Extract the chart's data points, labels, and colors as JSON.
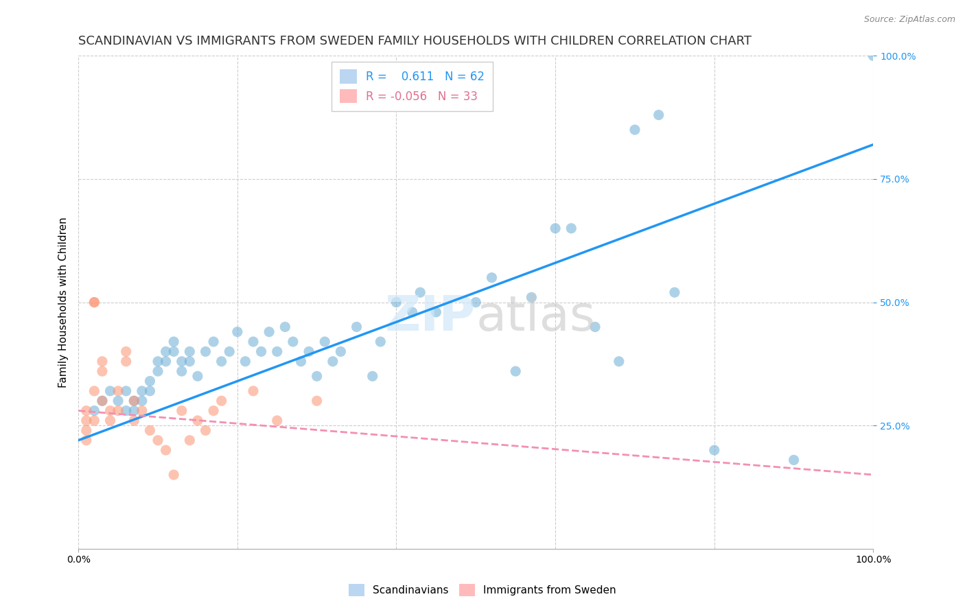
{
  "title": "SCANDINAVIAN VS IMMIGRANTS FROM SWEDEN FAMILY HOUSEHOLDS WITH CHILDREN CORRELATION CHART",
  "source": "Source: ZipAtlas.com",
  "xlabel": "",
  "ylabel": "Family Households with Children",
  "xlim": [
    0,
    1.0
  ],
  "ylim": [
    0,
    1.0
  ],
  "xtick_labels": [
    "0.0%",
    "100.0%"
  ],
  "ytick_labels_right": [
    "100.0%",
    "75.0%",
    "50.0%",
    "25.0%"
  ],
  "legend_blue_R": "R =",
  "legend_blue_R_val": "0.611",
  "legend_blue_N": "N = 62",
  "legend_pink_R": "R = -0.056",
  "legend_pink_N": "N = 33",
  "blue_color": "#6baed6",
  "pink_color": "#fc9272",
  "blue_line_color": "#2196F3",
  "pink_line_color": "#F48FB1",
  "watermark": "ZIPatlas",
  "blue_scatter_x": [
    0.02,
    0.03,
    0.04,
    0.05,
    0.06,
    0.06,
    0.07,
    0.07,
    0.08,
    0.08,
    0.09,
    0.09,
    0.1,
    0.1,
    0.11,
    0.11,
    0.12,
    0.12,
    0.13,
    0.13,
    0.14,
    0.14,
    0.15,
    0.16,
    0.17,
    0.18,
    0.19,
    0.2,
    0.21,
    0.22,
    0.23,
    0.24,
    0.25,
    0.26,
    0.27,
    0.28,
    0.29,
    0.3,
    0.31,
    0.32,
    0.33,
    0.35,
    0.37,
    0.38,
    0.4,
    0.42,
    0.43,
    0.45,
    0.5,
    0.52,
    0.55,
    0.57,
    0.6,
    0.62,
    0.65,
    0.68,
    0.7,
    0.73,
    0.75,
    0.8,
    0.9,
    1.0
  ],
  "blue_scatter_y": [
    0.28,
    0.3,
    0.32,
    0.3,
    0.28,
    0.32,
    0.3,
    0.28,
    0.3,
    0.32,
    0.34,
    0.32,
    0.36,
    0.38,
    0.4,
    0.38,
    0.42,
    0.4,
    0.36,
    0.38,
    0.4,
    0.38,
    0.35,
    0.4,
    0.42,
    0.38,
    0.4,
    0.44,
    0.38,
    0.42,
    0.4,
    0.44,
    0.4,
    0.45,
    0.42,
    0.38,
    0.4,
    0.35,
    0.42,
    0.38,
    0.4,
    0.45,
    0.35,
    0.42,
    0.5,
    0.48,
    0.52,
    0.48,
    0.5,
    0.55,
    0.36,
    0.51,
    0.65,
    0.65,
    0.45,
    0.38,
    0.85,
    0.88,
    0.52,
    0.2,
    0.18,
    1.0
  ],
  "pink_scatter_x": [
    0.01,
    0.01,
    0.01,
    0.01,
    0.02,
    0.02,
    0.02,
    0.02,
    0.03,
    0.03,
    0.03,
    0.04,
    0.04,
    0.05,
    0.05,
    0.06,
    0.06,
    0.07,
    0.07,
    0.08,
    0.09,
    0.1,
    0.11,
    0.12,
    0.13,
    0.14,
    0.15,
    0.16,
    0.17,
    0.18,
    0.22,
    0.25,
    0.3
  ],
  "pink_scatter_y": [
    0.28,
    0.26,
    0.24,
    0.22,
    0.5,
    0.5,
    0.32,
    0.26,
    0.38,
    0.36,
    0.3,
    0.28,
    0.26,
    0.32,
    0.28,
    0.4,
    0.38,
    0.3,
    0.26,
    0.28,
    0.24,
    0.22,
    0.2,
    0.15,
    0.28,
    0.22,
    0.26,
    0.24,
    0.28,
    0.3,
    0.32,
    0.26,
    0.3
  ],
  "blue_line_x": [
    0.0,
    1.0
  ],
  "blue_line_y": [
    0.22,
    0.82
  ],
  "pink_line_x": [
    0.0,
    1.0
  ],
  "pink_line_y": [
    0.28,
    0.15
  ],
  "grid_color": "#cccccc",
  "background_color": "#ffffff",
  "title_fontsize": 13,
  "label_fontsize": 11,
  "tick_fontsize": 10
}
